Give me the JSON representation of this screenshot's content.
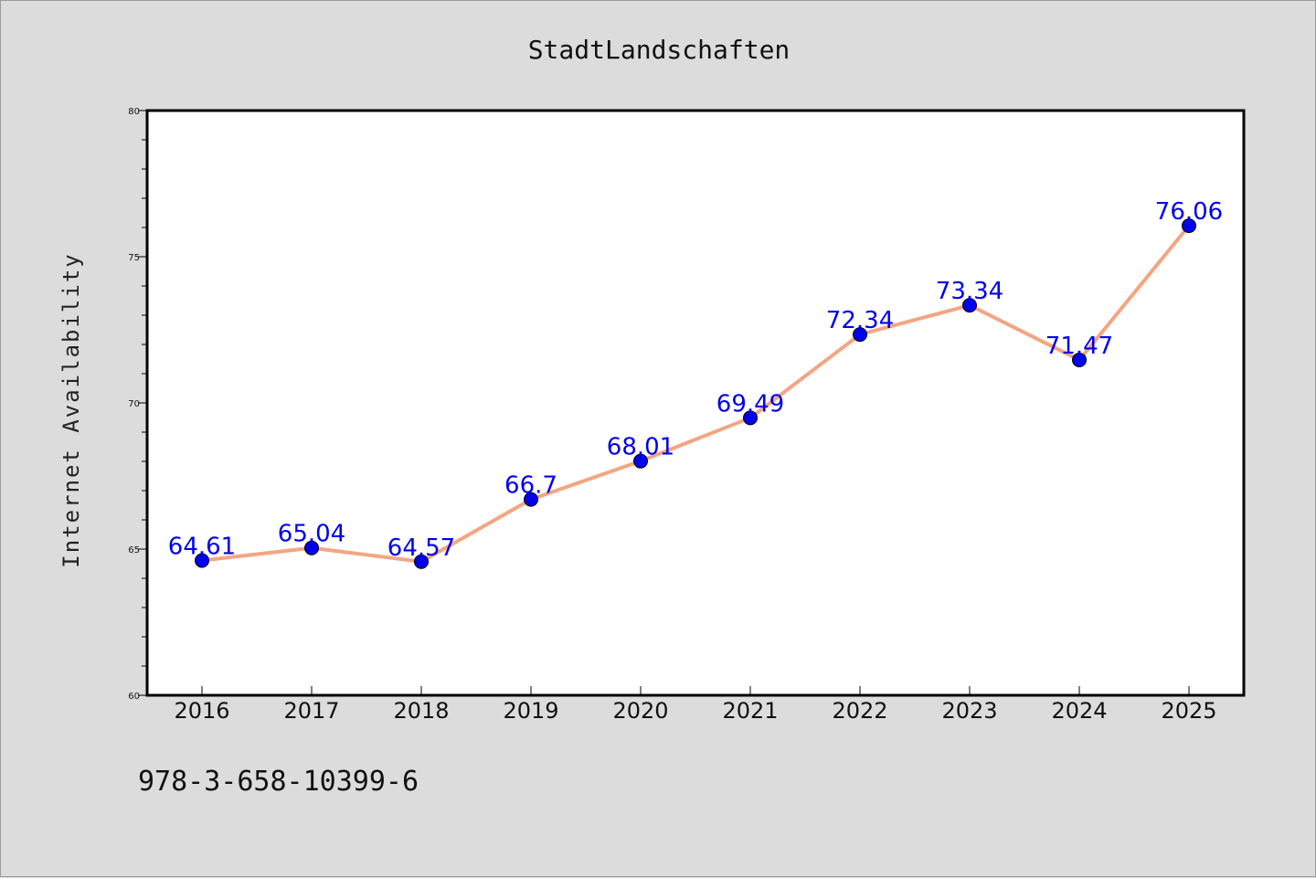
{
  "chart_data": {
    "type": "line",
    "title": "StadtLandschaften",
    "xlabel": "",
    "ylabel": "Internet Availability",
    "categories": [
      "2016",
      "2017",
      "2018",
      "2019",
      "2020",
      "2021",
      "2022",
      "2023",
      "2024",
      "2025"
    ],
    "series": [
      {
        "values": [
          64.61,
          65.04,
          64.57,
          66.7,
          68.01,
          69.49,
          72.34,
          73.34,
          71.47,
          76.06
        ],
        "data_labels": [
          "64.61",
          "65.04",
          "64.57",
          "66.7",
          "68.01",
          "69.49",
          "72.34",
          "73.34",
          "71.47",
          "76.06"
        ],
        "line_color": "#f4a582",
        "marker_color": "#0000ee"
      }
    ],
    "ylim": [
      60,
      80
    ],
    "yticks": [
      "60",
      "65",
      "70",
      "75",
      "80"
    ],
    "grid": false,
    "legend": "none"
  },
  "footer": {
    "isbn": "978-3-658-10399-6"
  }
}
